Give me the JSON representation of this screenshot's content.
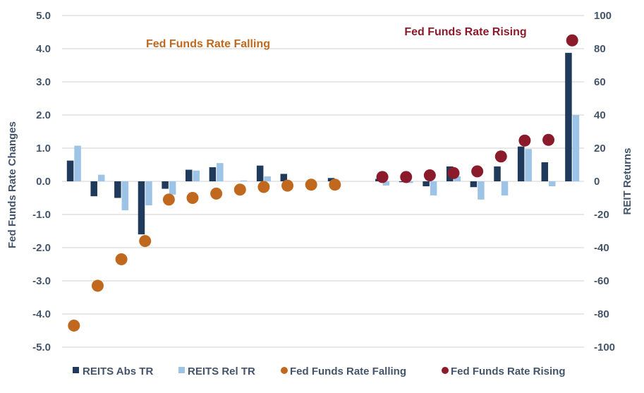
{
  "chart_data": {
    "type": "bar",
    "title": "",
    "ylabel_left": "Fed Funds Rate Changes",
    "ylabel_right": "REIT Returns",
    "ylim_left": [
      -5,
      5
    ],
    "ylim_right": [
      -100,
      100
    ],
    "yticks_left": [
      "5.0",
      "4.0",
      "3.0",
      "2.0",
      "1.0",
      "0.0",
      "-1.0",
      "-2.0",
      "-3.0",
      "-4.0",
      "-5.0"
    ],
    "yticks_right": [
      "100",
      "80",
      "60",
      "40",
      "20",
      "0",
      "-20",
      "-40",
      "-60",
      "-80",
      "-100"
    ],
    "grid": true,
    "legend_position": "bottom",
    "num_categories": 22,
    "series": [
      {
        "name": "REITS Abs TR",
        "type": "bar",
        "axis": "right",
        "color": "#1f3a5a",
        "values": [
          12.5,
          -9,
          -10,
          -32,
          -4.5,
          7,
          8.5,
          0,
          9.5,
          4.5,
          0,
          2,
          null,
          1.5,
          -0.5,
          -3,
          9,
          -3.5,
          9,
          21,
          11.5,
          77.5
        ]
      },
      {
        "name": "REITS Rel TR",
        "type": "bar",
        "axis": "right",
        "color": "#9dc3e6",
        "values": [
          21.5,
          4,
          -17.5,
          -14.5,
          -8,
          6.5,
          11,
          0.5,
          3,
          0,
          0,
          0,
          null,
          -2.5,
          -1,
          -8.5,
          3,
          -11,
          -8.5,
          19.5,
          -3,
          40
        ]
      },
      {
        "name": "Fed Funds Rate Falling",
        "type": "scatter",
        "axis": "left",
        "color": "#c0691e",
        "values": [
          -4.35,
          -3.15,
          -2.35,
          -1.8,
          -0.55,
          -0.5,
          -0.37,
          -0.25,
          -0.17,
          -0.13,
          -0.1,
          -0.1,
          null,
          null,
          null,
          null,
          null,
          null,
          null,
          null,
          null,
          null
        ]
      },
      {
        "name": "Fed Funds Rate Rising",
        "type": "scatter",
        "axis": "left",
        "color": "#8b1a2b",
        "values": [
          null,
          null,
          null,
          null,
          null,
          null,
          null,
          null,
          null,
          null,
          null,
          null,
          null,
          0.13,
          0.13,
          0.18,
          0.25,
          0.3,
          0.75,
          1.23,
          1.25,
          4.25
        ]
      }
    ],
    "annotations": [
      {
        "text": "Fed Funds Rate Falling",
        "color": "#c0691e"
      },
      {
        "text": "Fed Funds Rate Rising",
        "color": "#8b1a2b"
      }
    ]
  }
}
